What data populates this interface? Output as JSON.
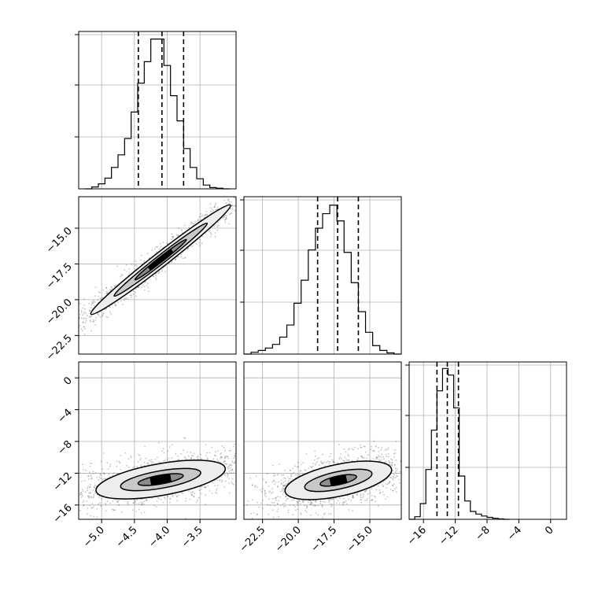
{
  "chart_data": [
    {
      "type": "histogram",
      "panel": "p00",
      "param": 0,
      "grid": true,
      "quantile_lines": [
        -4.44,
        -4.08,
        -3.75
      ],
      "bins": [
        -5.25,
        -5.15,
        -5.05,
        -4.95,
        -4.85,
        -4.75,
        -4.65,
        -4.55,
        -4.45,
        -4.35,
        -4.25,
        -4.15,
        -4.05,
        -3.95,
        -3.85,
        -3.75,
        -3.65,
        -3.55,
        -3.45,
        -3.35,
        -3.25,
        -3.15,
        -3.05
      ],
      "counts": [
        0.0,
        1.5,
        4.0,
        8.5,
        17.0,
        27.0,
        40.0,
        61.0,
        84.0,
        101.0,
        119.0,
        119.0,
        98.0,
        74.0,
        54.0,
        32.0,
        17.0,
        8.0,
        3.0,
        1.0,
        0.5,
        0.0
      ],
      "ylim": [
        0,
        125
      ]
    },
    {
      "type": "scatter-density",
      "panel": "p10",
      "x_param": 0,
      "y_param": 1,
      "grid": true,
      "center": [
        -4.1,
        -17.2
      ],
      "contour_levels": [
        {
          "angle_deg": 38,
          "semi_major": 1.35,
          "semi_minor": 0.5
        },
        {
          "angle_deg": 38,
          "semi_major": 0.9,
          "semi_minor": 0.3
        },
        {
          "angle_deg": 38,
          "semi_major": 0.5,
          "semi_minor": 0.17
        }
      ]
    },
    {
      "type": "histogram",
      "panel": "p11",
      "param": 1,
      "grid": true,
      "quantile_lines": [
        -18.65,
        -17.25,
        -15.8
      ],
      "bins": [
        -23.8,
        -23.3,
        -22.8,
        -22.3,
        -21.8,
        -21.3,
        -20.8,
        -20.3,
        -19.8,
        -19.3,
        -18.8,
        -18.3,
        -17.8,
        -17.3,
        -16.8,
        -16.3,
        -15.8,
        -15.3,
        -14.8,
        -14.3,
        -13.8,
        -13.3,
        -12.8
      ],
      "counts": [
        0.0,
        1.5,
        3.0,
        5.0,
        8.0,
        14.0,
        24.0,
        42.0,
        61.0,
        86.0,
        104.0,
        116.0,
        123.0,
        110.0,
        84.0,
        59.0,
        35.0,
        18.0,
        7.0,
        3.0,
        1.0,
        0.0
      ],
      "ylim": [
        0,
        130
      ]
    },
    {
      "type": "scatter-density",
      "panel": "p20",
      "x_param": 0,
      "y_param": 2,
      "grid": true,
      "center": [
        -4.1,
        -12.8
      ],
      "contour_levels": [
        {
          "angle_deg": 10,
          "semi_major": 1.0,
          "semi_minor": 2.0
        },
        {
          "angle_deg": 10,
          "semi_major": 0.62,
          "semi_minor": 1.1
        },
        {
          "angle_deg": 10,
          "semi_major": 0.35,
          "semi_minor": 0.55
        }
      ]
    },
    {
      "type": "scatter-density",
      "panel": "p21",
      "x_param": 1,
      "y_param": 2,
      "grid": true,
      "center": [
        -17.2,
        -12.9
      ],
      "contour_levels": [
        {
          "angle_deg": 12,
          "semi_major": 3.8,
          "semi_minor": 2.0
        },
        {
          "angle_deg": 12,
          "semi_major": 2.4,
          "semi_minor": 1.1
        },
        {
          "angle_deg": 12,
          "semi_major": 1.3,
          "semi_minor": 0.55
        }
      ]
    },
    {
      "type": "histogram",
      "panel": "p22",
      "param": 2,
      "grid": true,
      "quantile_lines": [
        -14.3,
        -13.0,
        -11.6
      ],
      "bins": [
        -17.8,
        -17.1,
        -16.4,
        -15.7,
        -15.0,
        -14.3,
        -13.6,
        -12.9,
        -12.2,
        -11.5,
        -10.8,
        -10.1,
        -9.4,
        -8.7,
        -8.0,
        -7.3,
        -6.6,
        -5.9,
        -5.2
      ],
      "counts": [
        0.0,
        2.0,
        12.0,
        38.0,
        68.0,
        98.0,
        115.0,
        110.0,
        85.0,
        33.0,
        14.0,
        6.0,
        4.0,
        2.5,
        1.5,
        0.8,
        0.3,
        0.0
      ],
      "ylim": [
        0,
        120
      ]
    }
  ],
  "axes": {
    "param0": {
      "lim": [
        -5.35,
        -2.95
      ],
      "ticks": [
        -5.0,
        -4.5,
        -4.0,
        -3.5
      ],
      "tick_labels": [
        "−5.0",
        "−4.5",
        "−4.0",
        "−3.5"
      ]
    },
    "param1": {
      "lim": [
        -23.8,
        -12.8
      ],
      "ticks": [
        -22.5,
        -20.0,
        -17.5,
        -15.0
      ],
      "tick_labels": [
        "−22.5",
        "−20.0",
        "−17.5",
        "−15.0"
      ]
    },
    "param2": {
      "lim": [
        -17.8,
        2.0
      ],
      "ticks": [
        -16,
        -12,
        -8,
        -4,
        0
      ],
      "tick_labels": [
        "−16",
        "−12",
        "−8",
        "−4",
        "0"
      ]
    }
  },
  "colors": {
    "frame": "#000000",
    "grid": "#b0b0b0",
    "points": "#555555",
    "background": "#ffffff"
  }
}
